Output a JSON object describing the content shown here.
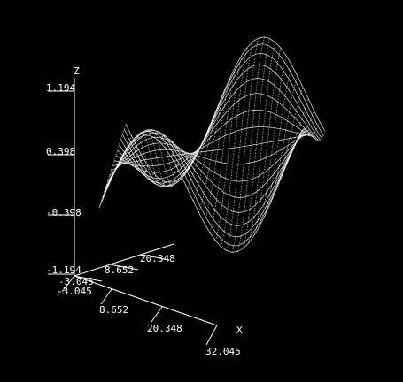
{
  "plot": {
    "type": "3d-surface",
    "background": "#000000",
    "line_color": "#ffffff",
    "axes": {
      "x": {
        "label": "X",
        "ticks": [
          "-3.045",
          "8.652",
          "20.348",
          "32.045"
        ],
        "range": [
          -3.045,
          32.045
        ]
      },
      "y": {
        "ticks": [
          "-3.045",
          "8.652",
          "20.348"
        ],
        "range": [
          -3.045,
          20.348
        ]
      },
      "z": {
        "label": "Z",
        "ticks": [
          "-1.194",
          "-0.398",
          "0.398",
          "1.194"
        ],
        "range": [
          -1.194,
          1.194
        ]
      }
    }
  }
}
